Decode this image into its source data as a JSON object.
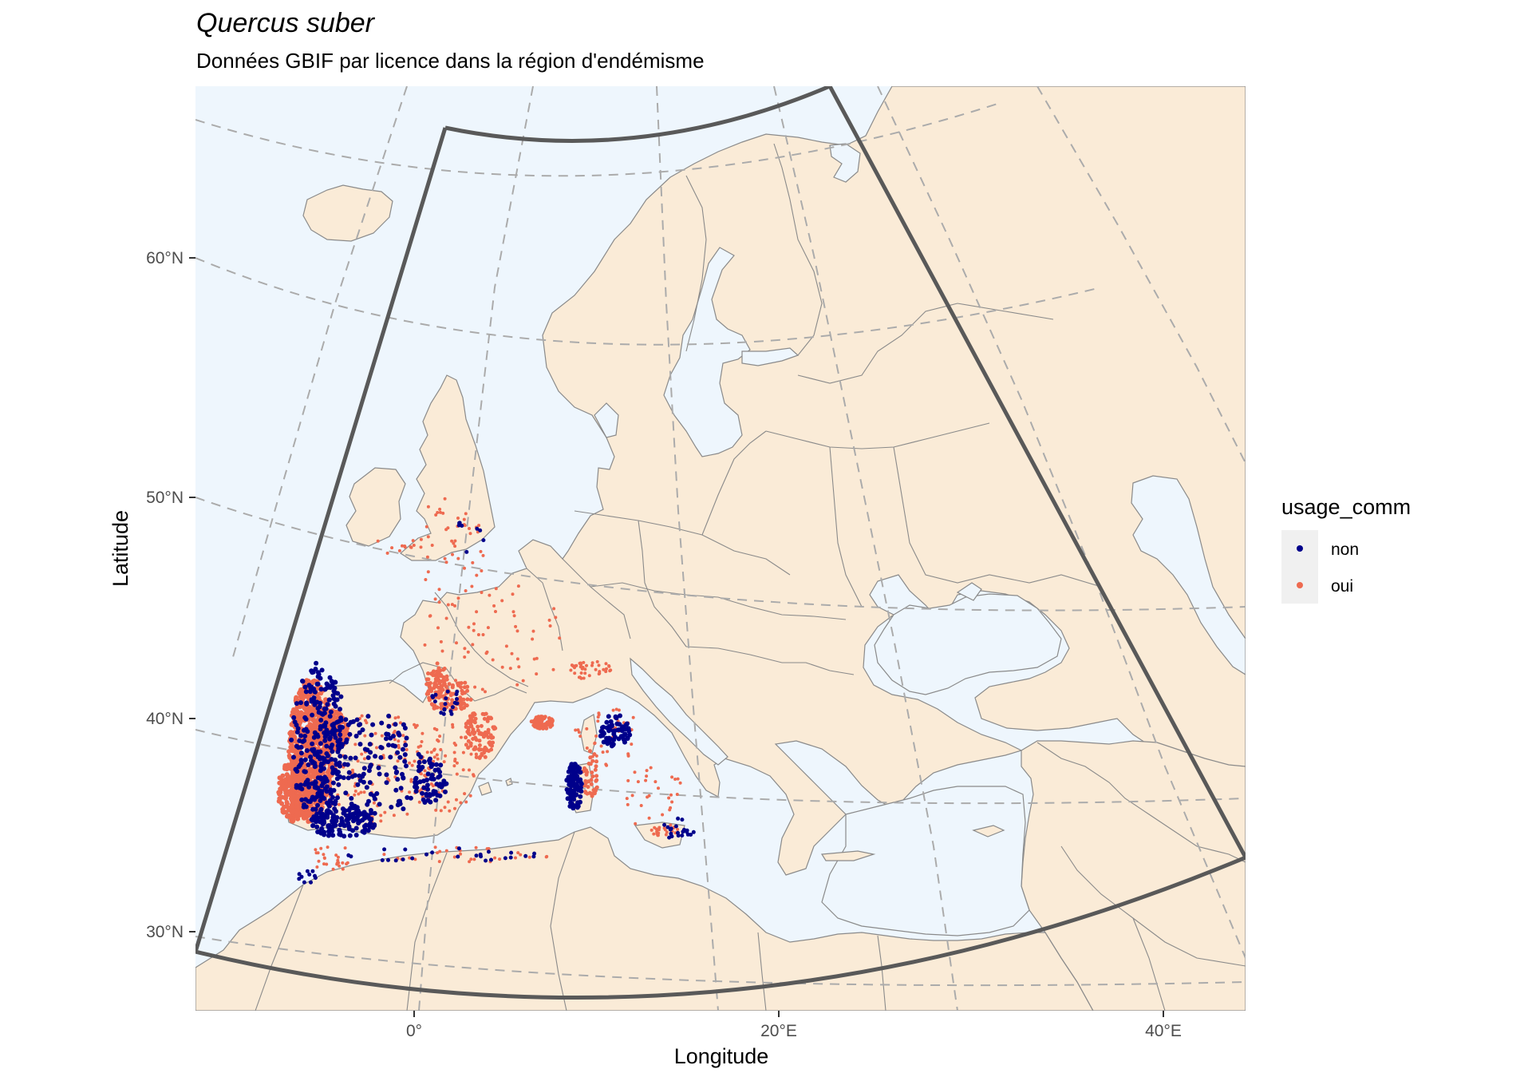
{
  "title": "Quercus suber",
  "subtitle": "Données GBIF par licence dans la région d'endémisme",
  "axes": {
    "xlabel": "Longitude",
    "ylabel": "Latitude",
    "x_ticks": [
      "0°",
      "20°E",
      "40°E"
    ],
    "y_ticks": [
      "60°N",
      "50°N",
      "40°N",
      "30°N"
    ]
  },
  "legend": {
    "title": "usage_comm",
    "items": [
      {
        "label": "non",
        "color": "#00008b"
      },
      {
        "label": "oui",
        "color": "#ee6a50"
      }
    ]
  },
  "colors": {
    "ocean": "#eef6fd",
    "land": "#faebd7",
    "region_outline": "#595959"
  }
}
